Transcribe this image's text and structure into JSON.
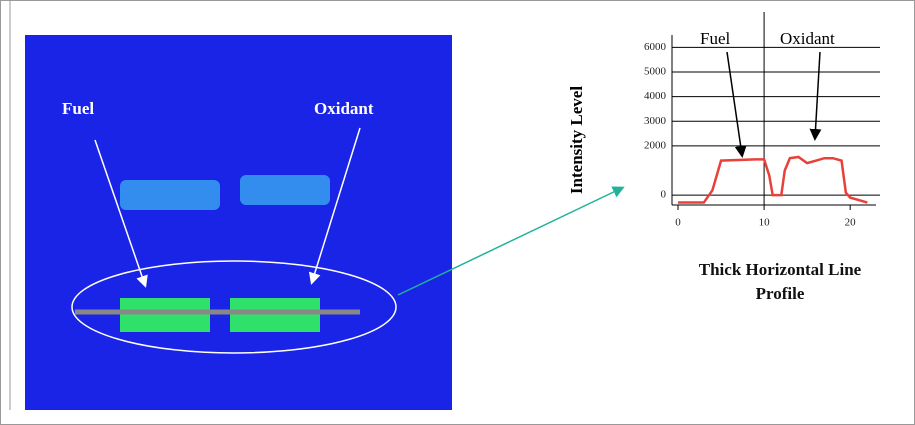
{
  "image": {
    "labels": [
      "Fuel",
      "Oxidant"
    ]
  },
  "chart_data": {
    "type": "line",
    "y_label": "Intensity Level",
    "x_label": "Thick Horizontal Line Profile",
    "annotations": [
      "Fuel",
      "Oxidant"
    ],
    "x": [
      0,
      3,
      4,
      5,
      9,
      10,
      10.6,
      11,
      12,
      12.4,
      13,
      14,
      15,
      16,
      17,
      18,
      19,
      19.5,
      20,
      21,
      22
    ],
    "series": [
      {
        "name": "Intensity",
        "color": "#e8413a",
        "values": [
          -300,
          -300,
          200,
          1400,
          1450,
          1450,
          800,
          0,
          0,
          1000,
          1500,
          1550,
          1300,
          1400,
          1500,
          1500,
          1400,
          100,
          -100,
          -200,
          -300
        ]
      }
    ],
    "xlim": [
      0,
      23
    ],
    "xticks": [
      0,
      10,
      20
    ],
    "ylim": [
      -400,
      6500
    ],
    "yticks": [
      0,
      2000,
      3000,
      4000,
      5000,
      6000
    ],
    "grid": true
  }
}
